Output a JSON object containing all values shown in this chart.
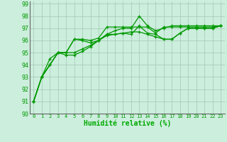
{
  "background_color": "#cceedd",
  "grid_color": "#aaccbb",
  "line_color": "#009900",
  "xlabel": "Humidité relative (%)",
  "xlabel_color": "#00aa00",
  "ylabel_color": "#009900",
  "xlim": [
    -0.5,
    23.5
  ],
  "ylim": [
    90,
    99.2
  ],
  "yticks": [
    90,
    91,
    92,
    93,
    94,
    95,
    96,
    97,
    98,
    99
  ],
  "xticks": [
    0,
    1,
    2,
    3,
    4,
    5,
    6,
    7,
    8,
    9,
    10,
    11,
    12,
    13,
    14,
    15,
    16,
    17,
    18,
    19,
    20,
    21,
    22,
    23
  ],
  "series": [
    [
      91,
      93,
      94,
      95,
      95,
      96.1,
      96.1,
      96.0,
      96.2,
      97.1,
      97.1,
      97.1,
      97.1,
      97.1,
      97.1,
      96.6,
      97.1,
      97.1,
      97.1,
      97.1,
      97.1,
      97.1,
      97.1,
      97.2
    ],
    [
      91,
      93,
      94,
      95,
      95,
      96.1,
      96.0,
      95.8,
      96.0,
      96.5,
      96.8,
      97.0,
      97.0,
      98.0,
      97.2,
      96.8,
      97.0,
      97.2,
      97.2,
      97.2,
      97.2,
      97.2,
      97.2,
      97.2
    ],
    [
      91,
      93,
      94,
      95,
      95,
      95.0,
      95.3,
      95.6,
      96.0,
      96.5,
      96.5,
      96.6,
      96.5,
      97.2,
      96.6,
      96.5,
      96.1,
      96.1,
      96.6,
      97.0,
      97.0,
      97.0,
      97.0,
      97.2
    ],
    [
      91,
      93,
      94.5,
      95,
      94.8,
      94.8,
      95.1,
      95.5,
      96.0,
      96.4,
      96.5,
      96.6,
      96.7,
      96.7,
      96.5,
      96.3,
      96.1,
      96.1,
      96.6,
      97.0,
      97.0,
      97.0,
      97.0,
      97.2
    ]
  ]
}
